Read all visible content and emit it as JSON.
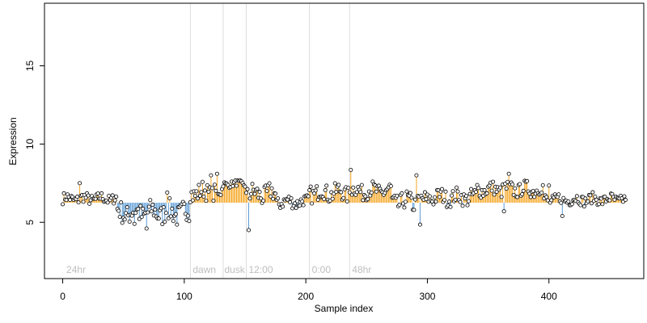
{
  "chart_data": {
    "type": "scatter",
    "title": "",
    "xlabel": "Sample index",
    "ylabel": "Expression",
    "xlim": [
      -15,
      478
    ],
    "ylim": [
      1.4,
      19.0
    ],
    "x_ticks": [
      0,
      100,
      200,
      300,
      400
    ],
    "y_ticks": [
      5,
      10,
      15
    ],
    "baseline": 6.25,
    "colors": {
      "above": "#f5a623",
      "below": "#5b9bd5",
      "point_stroke": "#000000",
      "point_fill": "#ffffff",
      "separator": "#dddddd",
      "region_label": "#bebebe"
    },
    "region_boundaries": [
      105,
      132,
      151,
      203,
      236
    ],
    "region_labels": [
      {
        "text": "24hr",
        "x": 3
      },
      {
        "text": "dawn",
        "x": 107
      },
      {
        "text": "dusk",
        "x": 133
      },
      {
        "text": "12:00",
        "x": 153
      },
      {
        "text": "0:00",
        "x": 205
      },
      {
        "text": "48hr",
        "x": 238
      }
    ],
    "series_segments": [
      {
        "from": 0,
        "to": 44,
        "base": 6.5,
        "amp": 0.35
      },
      {
        "from": 45,
        "to": 104,
        "base": 5.6,
        "amp": 0.7
      },
      {
        "from": 105,
        "to": 131,
        "base": 6.9,
        "amp": 0.6
      },
      {
        "from": 132,
        "to": 150,
        "base": 7.45,
        "amp": 0.2
      },
      {
        "from": 151,
        "to": 175,
        "base": 6.8,
        "amp": 0.6
      },
      {
        "from": 176,
        "to": 202,
        "base": 6.3,
        "amp": 0.4
      },
      {
        "from": 203,
        "to": 235,
        "base": 6.9,
        "amp": 0.55
      },
      {
        "from": 236,
        "to": 270,
        "base": 7.0,
        "amp": 0.5
      },
      {
        "from": 271,
        "to": 300,
        "base": 6.3,
        "amp": 0.6
      },
      {
        "from": 301,
        "to": 340,
        "base": 6.6,
        "amp": 0.5
      },
      {
        "from": 341,
        "to": 395,
        "base": 7.1,
        "amp": 0.45
      },
      {
        "from": 396,
        "to": 463,
        "base": 6.45,
        "amp": 0.35
      }
    ],
    "notable_points": [
      {
        "x": 14,
        "y": 7.5
      },
      {
        "x": 59,
        "y": 4.9
      },
      {
        "x": 69,
        "y": 4.6
      },
      {
        "x": 86,
        "y": 6.9
      },
      {
        "x": 122,
        "y": 8.0
      },
      {
        "x": 127,
        "y": 8.1
      },
      {
        "x": 153,
        "y": 4.5
      },
      {
        "x": 237,
        "y": 8.35
      },
      {
        "x": 291,
        "y": 8.0
      },
      {
        "x": 294,
        "y": 4.85
      },
      {
        "x": 363,
        "y": 5.7
      },
      {
        "x": 367,
        "y": 8.1
      },
      {
        "x": 400,
        "y": 7.35
      },
      {
        "x": 411,
        "y": 5.4
      }
    ]
  }
}
